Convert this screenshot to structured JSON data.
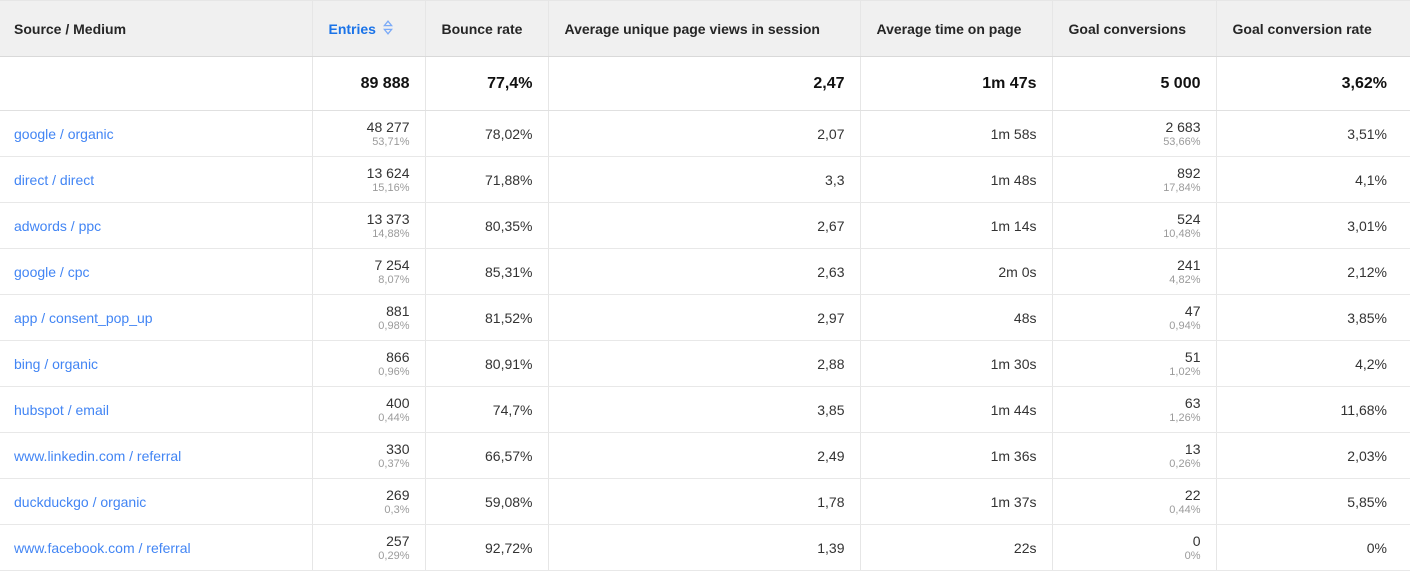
{
  "table": {
    "columns": [
      {
        "label": "Source / Medium"
      },
      {
        "label": "Entries",
        "sortable": true,
        "sort_icon": "sort-updown-icon",
        "sort_color": "#7baaf7",
        "label_color": "#1a73e8"
      },
      {
        "label": "Bounce rate"
      },
      {
        "label": "Average unique page views in session"
      },
      {
        "label": "Average time on page"
      },
      {
        "label": "Goal conversions"
      },
      {
        "label": "Goal conversion rate"
      }
    ],
    "totals": {
      "entries": "89 888",
      "bounce_rate": "77,4%",
      "avg_unique_page_views": "2,47",
      "avg_time_on_page": "1m 47s",
      "goal_conversions": "5 000",
      "goal_conversion_rate": "3,62%"
    },
    "rows": [
      {
        "source_medium": "google / organic",
        "entries": "48 277",
        "entries_pct": "53,71%",
        "bounce_rate": "78,02%",
        "avg_unique_page_views": "2,07",
        "avg_time_on_page": "1m 58s",
        "goal_conversions": "2 683",
        "goal_conversions_pct": "53,66%",
        "goal_conversion_rate": "3,51%"
      },
      {
        "source_medium": "direct / direct",
        "entries": "13 624",
        "entries_pct": "15,16%",
        "bounce_rate": "71,88%",
        "avg_unique_page_views": "3,3",
        "avg_time_on_page": "1m 48s",
        "goal_conversions": "892",
        "goal_conversions_pct": "17,84%",
        "goal_conversion_rate": "4,1%"
      },
      {
        "source_medium": "adwords / ppc",
        "entries": "13 373",
        "entries_pct": "14,88%",
        "bounce_rate": "80,35%",
        "avg_unique_page_views": "2,67",
        "avg_time_on_page": "1m 14s",
        "goal_conversions": "524",
        "goal_conversions_pct": "10,48%",
        "goal_conversion_rate": "3,01%"
      },
      {
        "source_medium": "google / cpc",
        "entries": "7 254",
        "entries_pct": "8,07%",
        "bounce_rate": "85,31%",
        "avg_unique_page_views": "2,63",
        "avg_time_on_page": "2m 0s",
        "goal_conversions": "241",
        "goal_conversions_pct": "4,82%",
        "goal_conversion_rate": "2,12%"
      },
      {
        "source_medium": "app / consent_pop_up",
        "entries": "881",
        "entries_pct": "0,98%",
        "bounce_rate": "81,52%",
        "avg_unique_page_views": "2,97",
        "avg_time_on_page": "48s",
        "goal_conversions": "47",
        "goal_conversions_pct": "0,94%",
        "goal_conversion_rate": "3,85%"
      },
      {
        "source_medium": "bing / organic",
        "entries": "866",
        "entries_pct": "0,96%",
        "bounce_rate": "80,91%",
        "avg_unique_page_views": "2,88",
        "avg_time_on_page": "1m 30s",
        "goal_conversions": "51",
        "goal_conversions_pct": "1,02%",
        "goal_conversion_rate": "4,2%"
      },
      {
        "source_medium": "hubspot / email",
        "entries": "400",
        "entries_pct": "0,44%",
        "bounce_rate": "74,7%",
        "avg_unique_page_views": "3,85",
        "avg_time_on_page": "1m 44s",
        "goal_conversions": "63",
        "goal_conversions_pct": "1,26%",
        "goal_conversion_rate": "11,68%"
      },
      {
        "source_medium": "www.linkedin.com / referral",
        "entries": "330",
        "entries_pct": "0,37%",
        "bounce_rate": "66,57%",
        "avg_unique_page_views": "2,49",
        "avg_time_on_page": "1m 36s",
        "goal_conversions": "13",
        "goal_conversions_pct": "0,26%",
        "goal_conversion_rate": "2,03%"
      },
      {
        "source_medium": "duckduckgo / organic",
        "entries": "269",
        "entries_pct": "0,3%",
        "bounce_rate": "59,08%",
        "avg_unique_page_views": "1,78",
        "avg_time_on_page": "1m 37s",
        "goal_conversions": "22",
        "goal_conversions_pct": "0,44%",
        "goal_conversion_rate": "5,85%"
      },
      {
        "source_medium": "www.facebook.com / referral",
        "entries": "257",
        "entries_pct": "0,29%",
        "bounce_rate": "92,72%",
        "avg_unique_page_views": "1,39",
        "avg_time_on_page": "22s",
        "goal_conversions": "0",
        "goal_conversions_pct": "0%",
        "goal_conversion_rate": "0%"
      }
    ]
  }
}
